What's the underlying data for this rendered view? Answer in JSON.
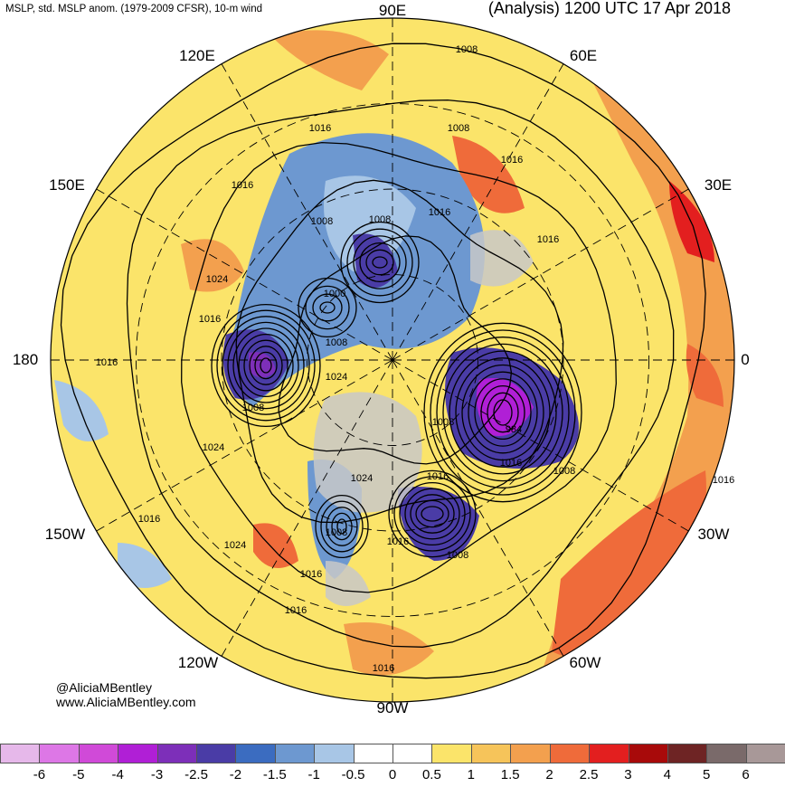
{
  "header": {
    "left_title": "MSLP, std. MSLP anom. (1979-2009 CFSR), 10-m wind",
    "right_title": "(Analysis) 1200 UTC 17 Apr 2018"
  },
  "longitude_labels": {
    "n90e": "90E",
    "n60e": "60E",
    "n30e": "30E",
    "n0": "0",
    "n30w": "30W",
    "n60w": "60W",
    "n90w": "90W",
    "n120w": "120W",
    "n150w": "150W",
    "n180": "180",
    "n150e": "150E",
    "n120e": "120E"
  },
  "isobar_labels": [
    "1008",
    "1008",
    "1016",
    "1016",
    "1016",
    "1008",
    "1008",
    "1016",
    "1016",
    "1024",
    "1016",
    "1000",
    "1008",
    "1016",
    "1024",
    "1008",
    "1024",
    "1008",
    "1016",
    "1008",
    "984",
    "1008",
    "1016",
    "1024",
    "1016",
    "1016",
    "1008",
    "1016",
    "1024",
    "1016",
    "1016",
    "1016"
  ],
  "credits": {
    "handle": "@AliciaMBentley",
    "website": "www.AliciaMBentley.com"
  },
  "colorbar": {
    "colors": [
      "#e6b8ea",
      "#dd77e6",
      "#d04ad8",
      "#b01fd6",
      "#7d2fb9",
      "#4a3ca6",
      "#3b6cc0",
      "#6d98d0",
      "#a8c6e6",
      "#ffffff",
      "#ffffff",
      "#fbe46a",
      "#f6c45a",
      "#f3a04e",
      "#ef6b3a",
      "#e31f1f",
      "#a80a0a",
      "#6e2424",
      "#7a6a6a",
      "#a89898"
    ],
    "tick_labels": [
      "-6",
      "-5",
      "-4",
      "-3",
      "-2.5",
      "-2",
      "-1.5",
      "-1",
      "-0.5",
      "0",
      "0.5",
      "1",
      "1.5",
      "2",
      "2.5",
      "3",
      "4",
      "5",
      "6"
    ]
  },
  "colors": {
    "neg_strong": "#7d2fb9",
    "neg_mid": "#4a3ca6",
    "neg_light": "#6d98d0",
    "neg_faint": "#a8c6e6",
    "pos_faint": "#fbe46a",
    "pos_light": "#f6c45a",
    "pos_mid": "#f3a04e",
    "pos_strong": "#ef6b3a",
    "pos_red": "#e31f1f",
    "land_gray": "#c8c8c8"
  }
}
